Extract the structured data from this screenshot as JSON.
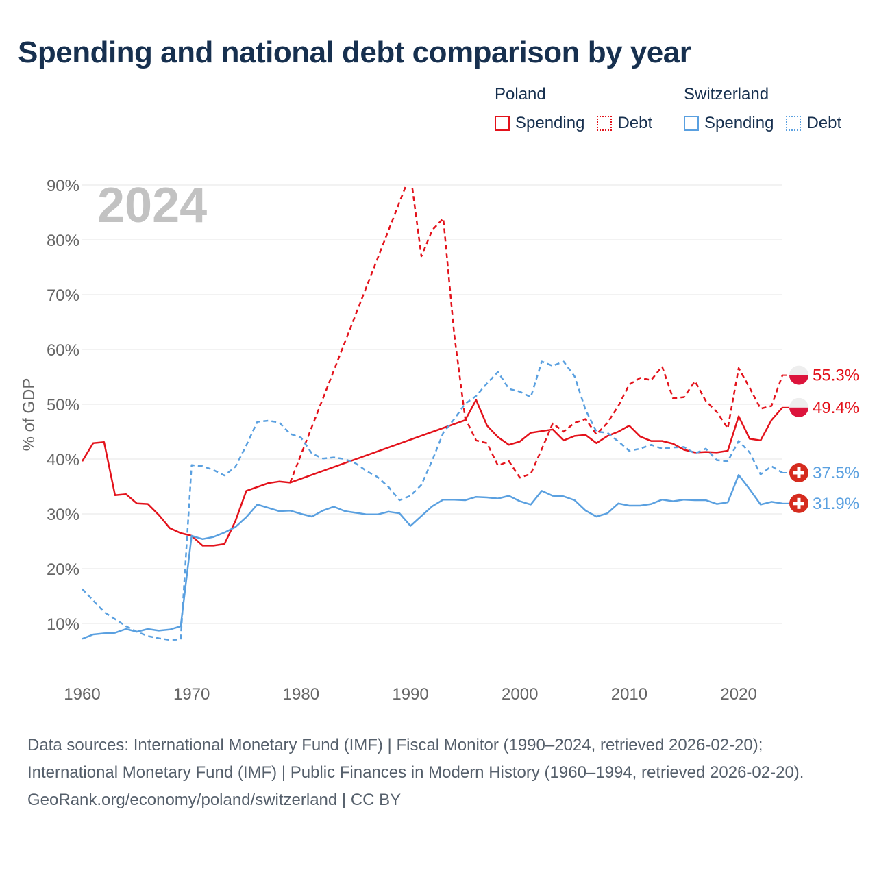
{
  "title": "Spending and national debt comparison by year",
  "legend": {
    "groups": [
      {
        "name": "Poland",
        "color": "#e3121b",
        "items": [
          {
            "label": "Spending",
            "style": "solid"
          },
          {
            "label": "Debt",
            "style": "dotted"
          }
        ]
      },
      {
        "name": "Switzerland",
        "color": "#5aa0e0",
        "items": [
          {
            "label": "Spending",
            "style": "solid"
          },
          {
            "label": "Debt",
            "style": "dotted"
          }
        ]
      }
    ]
  },
  "footer": {
    "sources": "Data sources: International Monetary Fund (IMF) | Fiscal Monitor (1990–2024, retrieved 2026-02-20); International Monetary Fund (IMF) | Public Finances in Modern History (1960–1994, retrieved 2026-02-20).",
    "credit": "GeoRank.org/economy/poland/switzerland | CC BY"
  },
  "chart_data": {
    "type": "line",
    "title": "Spending and national debt comparison by year",
    "year_label": "2024",
    "ylabel": "% of GDP",
    "xlabel": "",
    "xlim": [
      1960,
      2024
    ],
    "ylim": [
      0,
      90
    ],
    "yticks": [
      10,
      20,
      30,
      40,
      50,
      60,
      70,
      80,
      90
    ],
    "ytick_labels": [
      "10%",
      "20%",
      "30%",
      "40%",
      "50%",
      "60%",
      "70%",
      "80%",
      "90%"
    ],
    "xticks": [
      1960,
      1970,
      1980,
      1990,
      2000,
      2010,
      2020
    ],
    "xtick_labels": [
      "1960",
      "1970",
      "1980",
      "1990",
      "2000",
      "2010",
      "2020"
    ],
    "grid": true,
    "series": [
      {
        "name": "Poland Spending",
        "country": "Poland",
        "color": "#e3121b",
        "dash": "solid",
        "end_label": "49.4%",
        "points": [
          [
            1960,
            39.6
          ],
          [
            1961,
            42.9
          ],
          [
            1962,
            43.1
          ],
          [
            1963,
            33.4
          ],
          [
            1964,
            33.6
          ],
          [
            1965,
            31.9
          ],
          [
            1966,
            31.8
          ],
          [
            1967,
            29.8
          ],
          [
            1968,
            27.4
          ],
          [
            1969,
            26.5
          ],
          [
            1970,
            26.0
          ],
          [
            1971,
            24.2
          ],
          [
            1972,
            24.2
          ],
          [
            1973,
            24.5
          ],
          [
            1974,
            28.7
          ],
          [
            1975,
            34.2
          ],
          [
            1976,
            34.9
          ],
          [
            1977,
            35.6
          ],
          [
            1978,
            35.9
          ],
          [
            1979,
            35.7
          ],
          [
            1995,
            47.1
          ],
          [
            1996,
            50.8
          ],
          [
            1997,
            46.1
          ],
          [
            1998,
            44.0
          ],
          [
            1999,
            42.6
          ],
          [
            2000,
            43.2
          ],
          [
            2001,
            44.8
          ],
          [
            2002,
            45.1
          ],
          [
            2003,
            45.4
          ],
          [
            2004,
            43.4
          ],
          [
            2005,
            44.2
          ],
          [
            2006,
            44.4
          ],
          [
            2007,
            42.9
          ],
          [
            2008,
            44.2
          ],
          [
            2009,
            45.0
          ],
          [
            2010,
            46.1
          ],
          [
            2011,
            44.1
          ],
          [
            2012,
            43.3
          ],
          [
            2013,
            43.3
          ],
          [
            2014,
            42.8
          ],
          [
            2015,
            41.7
          ],
          [
            2016,
            41.2
          ],
          [
            2017,
            41.3
          ],
          [
            2018,
            41.2
          ],
          [
            2019,
            41.5
          ],
          [
            2020,
            47.8
          ],
          [
            2021,
            43.7
          ],
          [
            2022,
            43.4
          ],
          [
            2023,
            47.1
          ],
          [
            2024,
            49.4
          ]
        ]
      },
      {
        "name": "Poland Debt",
        "country": "Poland",
        "color": "#e3121b",
        "dash": "dashed",
        "end_label": "55.3%",
        "points": [
          [
            1979,
            35.7
          ],
          [
            1990,
            92.0
          ],
          [
            1991,
            77.0
          ],
          [
            1992,
            81.8
          ],
          [
            1993,
            83.9
          ],
          [
            1994,
            62.8
          ],
          [
            1995,
            47.5
          ],
          [
            1996,
            43.4
          ],
          [
            1997,
            42.9
          ],
          [
            1998,
            38.8
          ],
          [
            1999,
            39.6
          ],
          [
            2000,
            36.6
          ],
          [
            2001,
            37.3
          ],
          [
            2002,
            41.8
          ],
          [
            2003,
            46.5
          ],
          [
            2004,
            45.0
          ],
          [
            2005,
            46.6
          ],
          [
            2006,
            47.3
          ],
          [
            2007,
            44.5
          ],
          [
            2008,
            46.6
          ],
          [
            2009,
            49.7
          ],
          [
            2010,
            53.6
          ],
          [
            2011,
            54.8
          ],
          [
            2012,
            54.4
          ],
          [
            2013,
            56.9
          ],
          [
            2014,
            51.1
          ],
          [
            2015,
            51.3
          ],
          [
            2016,
            54.2
          ],
          [
            2017,
            50.6
          ],
          [
            2018,
            48.6
          ],
          [
            2019,
            45.6
          ],
          [
            2020,
            56.6
          ],
          [
            2021,
            53.0
          ],
          [
            2022,
            49.2
          ],
          [
            2023,
            49.7
          ],
          [
            2024,
            55.3
          ]
        ]
      },
      {
        "name": "Switzerland Spending",
        "country": "Switzerland",
        "color": "#5aa0e0",
        "dash": "solid",
        "end_label": "31.9%",
        "points": [
          [
            1960,
            7.2
          ],
          [
            1961,
            8.0
          ],
          [
            1962,
            8.2
          ],
          [
            1963,
            8.3
          ],
          [
            1964,
            9.0
          ],
          [
            1965,
            8.5
          ],
          [
            1966,
            9.0
          ],
          [
            1967,
            8.7
          ],
          [
            1968,
            8.9
          ],
          [
            1969,
            9.5
          ],
          [
            1970,
            26.0
          ],
          [
            1971,
            25.4
          ],
          [
            1972,
            25.8
          ],
          [
            1973,
            26.6
          ],
          [
            1974,
            27.6
          ],
          [
            1975,
            29.4
          ],
          [
            1976,
            31.7
          ],
          [
            1977,
            31.1
          ],
          [
            1978,
            30.5
          ],
          [
            1979,
            30.6
          ],
          [
            1980,
            30.0
          ],
          [
            1981,
            29.5
          ],
          [
            1982,
            30.6
          ],
          [
            1983,
            31.3
          ],
          [
            1984,
            30.5
          ],
          [
            1985,
            30.2
          ],
          [
            1986,
            29.9
          ],
          [
            1987,
            29.9
          ],
          [
            1988,
            30.4
          ],
          [
            1989,
            30.1
          ],
          [
            1990,
            27.8
          ],
          [
            1991,
            29.6
          ],
          [
            1992,
            31.4
          ],
          [
            1993,
            32.6
          ],
          [
            1994,
            32.6
          ],
          [
            1995,
            32.5
          ],
          [
            1996,
            33.1
          ],
          [
            1997,
            33.0
          ],
          [
            1998,
            32.8
          ],
          [
            1999,
            33.3
          ],
          [
            2000,
            32.3
          ],
          [
            2001,
            31.7
          ],
          [
            2002,
            34.2
          ],
          [
            2003,
            33.3
          ],
          [
            2004,
            33.2
          ],
          [
            2005,
            32.5
          ],
          [
            2006,
            30.6
          ],
          [
            2007,
            29.5
          ],
          [
            2008,
            30.1
          ],
          [
            2009,
            31.9
          ],
          [
            2010,
            31.5
          ],
          [
            2011,
            31.5
          ],
          [
            2012,
            31.8
          ],
          [
            2013,
            32.6
          ],
          [
            2014,
            32.3
          ],
          [
            2015,
            32.6
          ],
          [
            2016,
            32.5
          ],
          [
            2017,
            32.5
          ],
          [
            2018,
            31.8
          ],
          [
            2019,
            32.1
          ],
          [
            2020,
            37.1
          ],
          [
            2021,
            34.5
          ],
          [
            2022,
            31.7
          ],
          [
            2023,
            32.2
          ],
          [
            2024,
            31.9
          ]
        ]
      },
      {
        "name": "Switzerland Debt",
        "country": "Switzerland",
        "color": "#5aa0e0",
        "dash": "dashed",
        "end_label": "37.5%",
        "points": [
          [
            1960,
            16.3
          ],
          [
            1961,
            14.2
          ],
          [
            1962,
            12.1
          ],
          [
            1963,
            10.8
          ],
          [
            1964,
            9.5
          ],
          [
            1965,
            8.5
          ],
          [
            1966,
            7.7
          ],
          [
            1967,
            7.3
          ],
          [
            1968,
            7.0
          ],
          [
            1969,
            7.1
          ],
          [
            1970,
            38.9
          ],
          [
            1971,
            38.7
          ],
          [
            1972,
            38.0
          ],
          [
            1973,
            37.0
          ],
          [
            1974,
            38.6
          ],
          [
            1975,
            42.5
          ],
          [
            1976,
            46.8
          ],
          [
            1977,
            47.0
          ],
          [
            1978,
            46.7
          ],
          [
            1979,
            44.6
          ],
          [
            1980,
            43.9
          ],
          [
            1981,
            41.0
          ],
          [
            1982,
            40.1
          ],
          [
            1983,
            40.3
          ],
          [
            1984,
            40.0
          ],
          [
            1985,
            39.2
          ],
          [
            1986,
            37.8
          ],
          [
            1987,
            36.7
          ],
          [
            1988,
            34.9
          ],
          [
            1989,
            32.5
          ],
          [
            1990,
            33.3
          ],
          [
            1991,
            35.3
          ],
          [
            1992,
            39.8
          ],
          [
            1993,
            44.8
          ],
          [
            1994,
            47.3
          ],
          [
            1995,
            50.1
          ],
          [
            1996,
            51.5
          ],
          [
            1997,
            53.8
          ],
          [
            1998,
            55.9
          ],
          [
            1999,
            52.8
          ],
          [
            2000,
            52.3
          ],
          [
            2001,
            51.3
          ],
          [
            2002,
            57.8
          ],
          [
            2003,
            57.0
          ],
          [
            2004,
            57.8
          ],
          [
            2005,
            55.1
          ],
          [
            2006,
            49.0
          ],
          [
            2007,
            45.0
          ],
          [
            2008,
            44.8
          ],
          [
            2009,
            43.2
          ],
          [
            2010,
            41.5
          ],
          [
            2011,
            41.9
          ],
          [
            2012,
            42.6
          ],
          [
            2013,
            41.9
          ],
          [
            2014,
            42.1
          ],
          [
            2015,
            42.2
          ],
          [
            2016,
            41.0
          ],
          [
            2017,
            41.9
          ],
          [
            2018,
            39.8
          ],
          [
            2019,
            39.6
          ],
          [
            2020,
            43.3
          ],
          [
            2021,
            41.2
          ],
          [
            2022,
            37.2
          ],
          [
            2023,
            38.7
          ],
          [
            2024,
            37.5
          ]
        ]
      }
    ]
  }
}
